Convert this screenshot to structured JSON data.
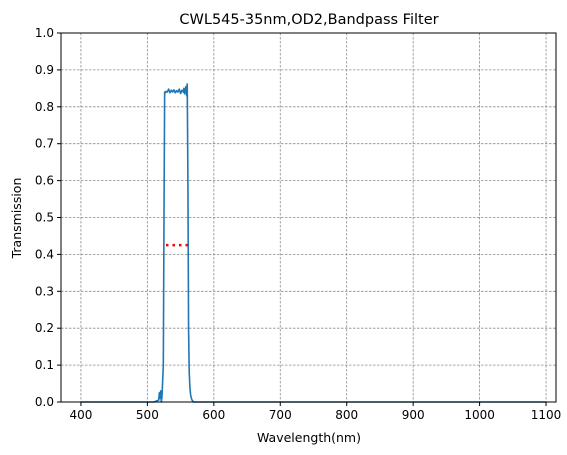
{
  "chart_data": {
    "type": "line",
    "title": "CWL545-35nm,OD2,Bandpass Filter",
    "xlabel": "Wavelength(nm)",
    "ylabel": "Transmission",
    "xlim": [
      370,
      1115
    ],
    "ylim": [
      0,
      1.0
    ],
    "x_ticks": [
      400,
      500,
      600,
      700,
      800,
      900,
      1000,
      1100
    ],
    "y_ticks": [
      0.0,
      0.1,
      0.2,
      0.3,
      0.4,
      0.5,
      0.6,
      0.7,
      0.8,
      0.9,
      1.0
    ],
    "grid": true,
    "series": [
      {
        "color": "#1f77b4",
        "x": [
          400,
          510,
          517,
          518,
          519,
          520,
          521,
          522,
          524,
          525,
          526,
          527,
          528,
          530,
          532,
          534,
          536,
          538,
          540,
          542,
          544,
          546,
          548,
          550,
          552,
          554,
          555,
          556,
          557,
          558,
          559,
          560,
          561,
          562,
          563,
          564,
          565,
          566,
          567,
          568,
          570,
          580,
          1100
        ],
        "y": [
          0.0,
          0.0,
          0.005,
          0.025,
          0.01,
          0.03,
          0.0,
          0.015,
          0.1,
          0.5,
          0.84,
          0.838,
          0.842,
          0.84,
          0.848,
          0.838,
          0.845,
          0.84,
          0.846,
          0.838,
          0.844,
          0.84,
          0.848,
          0.836,
          0.845,
          0.84,
          0.85,
          0.835,
          0.845,
          0.855,
          0.83,
          0.862,
          0.6,
          0.2,
          0.08,
          0.04,
          0.02,
          0.012,
          0.006,
          0.003,
          0.0,
          0.0,
          0.0
        ]
      }
    ],
    "annotations": [
      {
        "style": "red dotted segment",
        "color": "#ff0000",
        "x": [
          528,
          562
        ],
        "y": 0.425
      }
    ]
  }
}
